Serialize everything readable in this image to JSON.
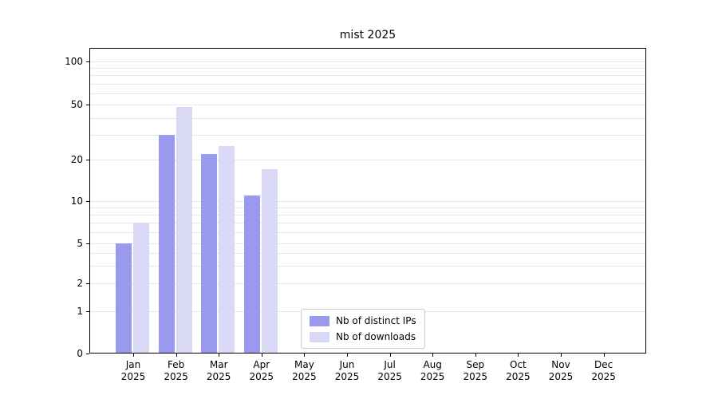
{
  "chart_data": {
    "type": "bar",
    "title": "mist 2025",
    "categories": [
      "Jan 2025",
      "Feb 2025",
      "Mar 2025",
      "Apr 2025",
      "May 2025",
      "Jun 2025",
      "Jul 2025",
      "Aug 2025",
      "Sep 2025",
      "Oct 2025",
      "Nov 2025",
      "Dec 2025"
    ],
    "series": [
      {
        "name": "Nb of distinct IPs",
        "color": "#9999ee",
        "values": [
          5,
          30,
          22,
          11,
          null,
          null,
          null,
          null,
          null,
          null,
          null,
          null
        ]
      },
      {
        "name": "Nb of downloads",
        "color": "#d9d9f6",
        "values": [
          7,
          48,
          25,
          17,
          null,
          null,
          null,
          null,
          null,
          null,
          null,
          null
        ]
      }
    ],
    "yscale": "symlog",
    "yticks": [
      0,
      1,
      2,
      5,
      10,
      20,
      50,
      100
    ],
    "ylim": [
      0,
      120
    ],
    "xlabel": "",
    "ylabel": "",
    "grid": true,
    "grid_color": "#e6e6e6",
    "axis_color": "#000000",
    "background_color": "#ffffff",
    "legend_position": "lower-center"
  }
}
